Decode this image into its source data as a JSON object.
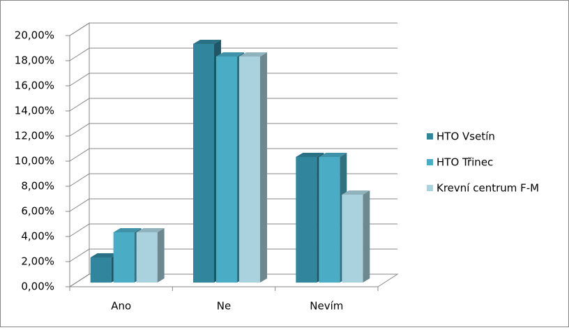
{
  "chart_data": {
    "type": "bar3d",
    "categories": [
      "Ano",
      "Ne",
      "Nevím"
    ],
    "series": [
      {
        "name": "HTO Vsetín",
        "color": "#31859c",
        "values": [
          2,
          19,
          10
        ]
      },
      {
        "name": "HTO Třinec",
        "color": "#4bacc6",
        "values": [
          4,
          18,
          10
        ]
      },
      {
        "name": "Krevní centrum F-M",
        "color": "#a9d1de",
        "values": [
          4,
          18,
          7
        ]
      }
    ],
    "ylim": [
      0,
      20
    ],
    "yticks": [
      {
        "value": 0,
        "label": "0,00%"
      },
      {
        "value": 2,
        "label": "2,00%"
      },
      {
        "value": 4,
        "label": "4,00%"
      },
      {
        "value": 6,
        "label": "6,00%"
      },
      {
        "value": 8,
        "label": "8,00%"
      },
      {
        "value": 10,
        "label": "10,00%"
      },
      {
        "value": 12,
        "label": "12,00%"
      },
      {
        "value": 14,
        "label": "14,00%"
      },
      {
        "value": 16,
        "label": "16,00%"
      },
      {
        "value": 18,
        "label": "18,00%"
      },
      {
        "value": 20,
        "label": "20,00%"
      }
    ],
    "grid": true,
    "legend": "right"
  }
}
